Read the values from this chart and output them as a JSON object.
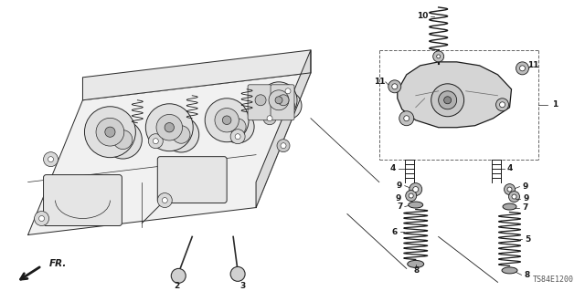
{
  "background_color": "#ffffff",
  "dark": "#1a1a1a",
  "gray": "#666666",
  "light_gray": "#cccccc",
  "part_code": "TS84E1200",
  "label_fontsize": 6.5,
  "code_fontsize": 6,
  "engine_color": "#f5f5f5",
  "engine_stroke": "#2a2a2a"
}
